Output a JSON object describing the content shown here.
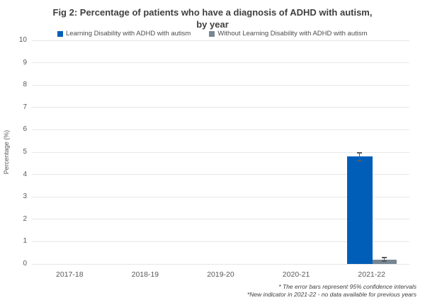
{
  "chart_data": {
    "type": "bar",
    "title": "Fig 2: Percentage of patients who have a diagnosis of ADHD with autism, by year",
    "title_lines": [
      "Fig 2: Percentage of patients who have a diagnosis of ADHD with autism,",
      "by year"
    ],
    "xlabel": "",
    "ylabel": "Percentage (%)",
    "ylim": [
      0,
      10
    ],
    "ytick_step": 1,
    "grid": "horizontal",
    "legend_position": "top",
    "categories": [
      "2017-18",
      "2018-19",
      "2019-20",
      "2020-21",
      "2021-22"
    ],
    "series": [
      {
        "name": "Learning Disability with ADHD with autism",
        "color": "#005EB8",
        "values": [
          null,
          null,
          null,
          null,
          4.8
        ],
        "ci_halfwidth": [
          null,
          null,
          null,
          null,
          0.15
        ]
      },
      {
        "name": "Without Learning Disability with ADHD with autism",
        "color": "#768692",
        "values": [
          null,
          null,
          null,
          null,
          0.2
        ],
        "ci_halfwidth": [
          null,
          null,
          null,
          null,
          0.05
        ]
      }
    ],
    "annotations": [
      "* The error bars represent 95% confidence intervals",
      "*New indicator in 2021-22 - no data available for previous years"
    ],
    "style": {
      "gridline_color": "#e7e7e7",
      "error_bar_color": "#595959",
      "axis_text_color": "#595959",
      "title_color": "#3f3f3f"
    }
  }
}
